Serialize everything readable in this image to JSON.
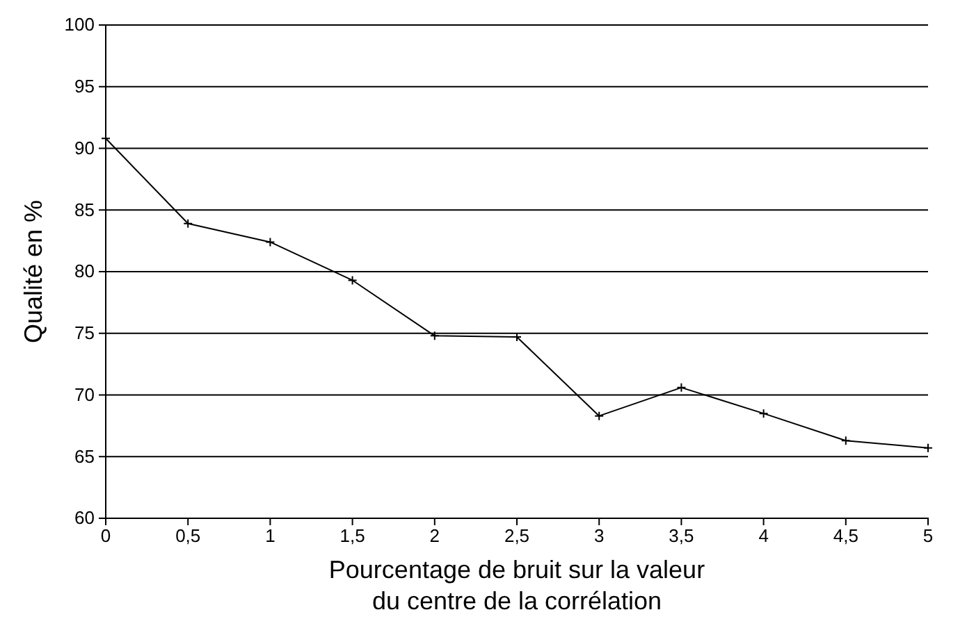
{
  "chart_data": {
    "type": "line",
    "xlabel": "Pourcentage de bruit sur la valeur\ndu centre de la corrélation",
    "ylabel": "Qualité en %",
    "x": [
      0,
      0.5,
      1,
      1.5,
      2,
      2.5,
      3,
      3.5,
      4,
      4.5,
      5
    ],
    "series": [
      {
        "color": "#000000",
        "values": [
          90.8,
          83.9,
          82.4,
          79.3,
          74.8,
          74.7,
          68.3,
          70.6,
          68.5,
          66.3,
          65.7
        ]
      }
    ],
    "xlim": [
      0,
      5
    ],
    "xticks": [
      0,
      {
        "value": 0.5,
        "label": "0,5"
      },
      1,
      {
        "value": 1.5,
        "label": "1,5"
      },
      2,
      {
        "value": 2.5,
        "label": "2,5"
      },
      3,
      {
        "value": 3.5,
        "label": "3,5"
      },
      4,
      {
        "value": 4.5,
        "label": "4,5"
      },
      5
    ],
    "ylim": [
      60,
      100
    ],
    "yticks": [
      60,
      65,
      70,
      75,
      80,
      85,
      90,
      95,
      100
    ],
    "grid": "y",
    "marker": "cross",
    "line_style": "solid"
  }
}
